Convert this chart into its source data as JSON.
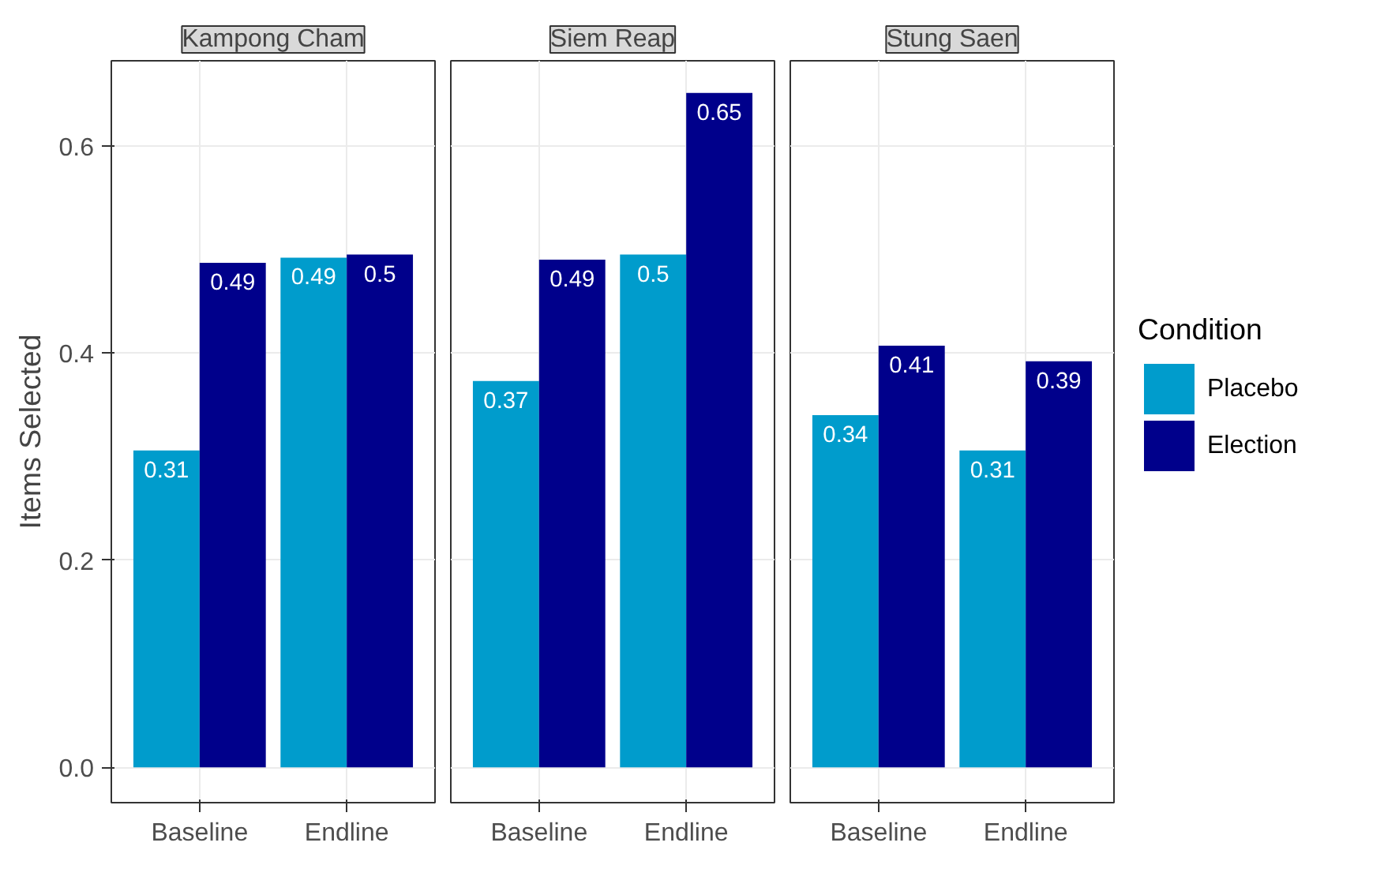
{
  "chart_data": [
    {
      "type": "bar",
      "title": "Kampong Cham",
      "ylabel": "Items Selected",
      "categories": [
        "Baseline",
        "Endline"
      ],
      "series": [
        {
          "color": "#009ccc",
          "values": [
            0.306,
            0.492
          ],
          "value_labels": [
            "0.31",
            "0.49"
          ]
        },
        {
          "color": "#00008b",
          "values": [
            0.487,
            0.495
          ],
          "value_labels": [
            "0.49",
            "0.5"
          ]
        }
      ],
      "ylim": [
        -0.034,
        0.682
      ],
      "yticks": [
        {
          "value": 0,
          "label": "0.0"
        },
        {
          "value": 0.2,
          "label": "0.2"
        },
        {
          "value": 0.4,
          "label": "0.4"
        },
        {
          "value": 0.6,
          "label": "0.6"
        }
      ],
      "grid": true,
      "legend": false
    },
    {
      "type": "bar",
      "title": "Siem Reap",
      "categories": [
        "Baseline",
        "Endline"
      ],
      "series": [
        {
          "color": "#009ccc",
          "values": [
            0.373,
            0.495
          ],
          "value_labels": [
            "0.37",
            "0.5"
          ]
        },
        {
          "color": "#00008b",
          "values": [
            0.49,
            0.651
          ],
          "value_labels": [
            "0.49",
            "0.65"
          ]
        }
      ],
      "ylim": [
        -0.034,
        0.682
      ],
      "yticks": [
        0,
        0.2,
        0.4,
        0.6
      ],
      "grid": true,
      "legend": false,
      "tick_labels": "x"
    },
    {
      "type": "bar",
      "title": "Stung Saen",
      "legend_title": "Condition",
      "categories": [
        "Baseline",
        "Endline"
      ],
      "series": [
        {
          "name": "Placebo",
          "color": "#009ccc",
          "values": [
            0.34,
            0.306
          ],
          "value_labels": [
            "0.34",
            "0.31"
          ]
        },
        {
          "name": "Election",
          "color": "#00008b",
          "values": [
            0.407,
            0.392
          ],
          "value_labels": [
            "0.41",
            "0.39"
          ]
        }
      ],
      "ylim": [
        -0.034,
        0.682
      ],
      "yticks": [
        0,
        0.2,
        0.4,
        0.6
      ],
      "grid": true,
      "legend": "right",
      "tick_labels": "x"
    }
  ]
}
